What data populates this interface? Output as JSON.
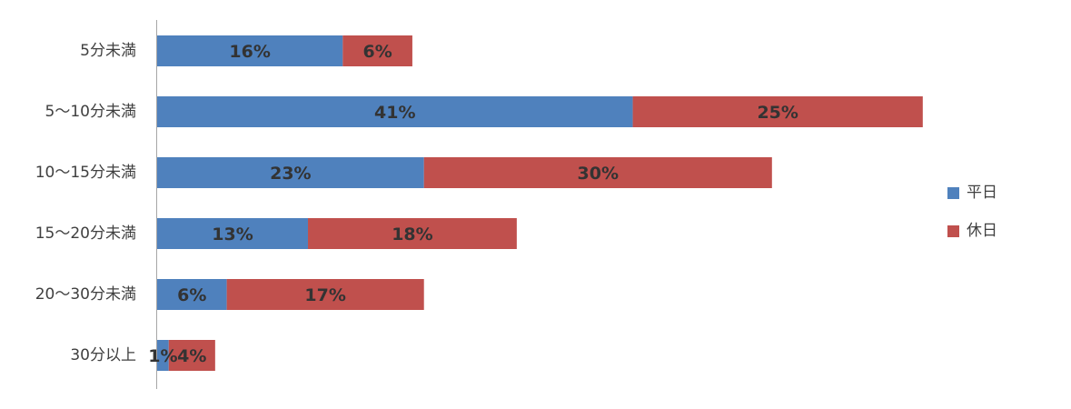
{
  "chart_data": {
    "type": "bar",
    "orientation": "horizontal",
    "stacked": true,
    "categories": [
      "5分未満",
      "5〜10分未満",
      "10〜15分未満",
      "15〜20分未満",
      "20〜30分未満",
      "30分以上"
    ],
    "series": [
      {
        "name": "平日",
        "values": [
          16,
          41,
          23,
          13,
          6,
          1
        ],
        "color": "#4F81BD"
      },
      {
        "name": "休日",
        "values": [
          6,
          25,
          30,
          18,
          17,
          4
        ],
        "color": "#C0504D"
      }
    ],
    "value_suffix": "%",
    "title": "",
    "xlabel": "",
    "ylabel": "",
    "grid": false,
    "legend_position": "right"
  }
}
